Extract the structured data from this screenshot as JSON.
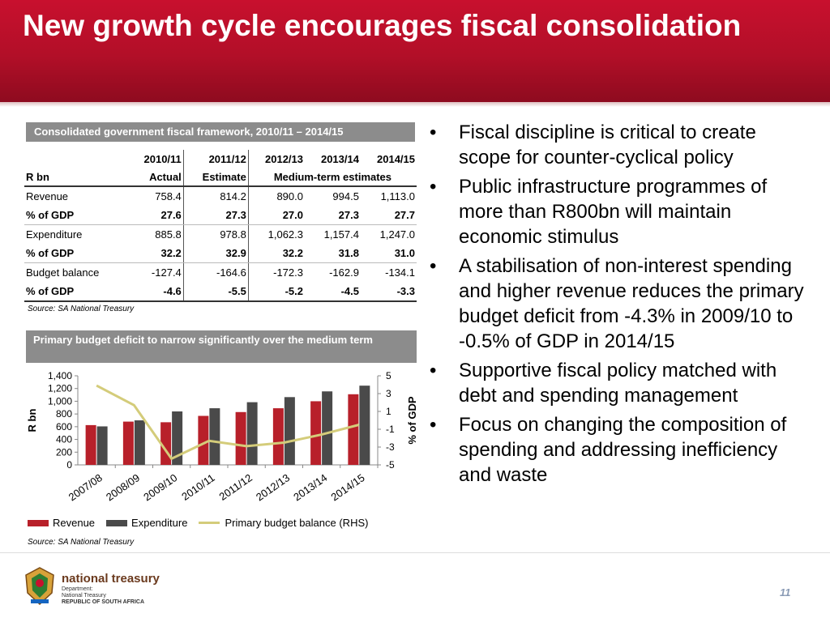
{
  "slide": {
    "title": "New growth cycle encourages fiscal consolidation",
    "page_number": "11"
  },
  "table": {
    "title": "Consolidated government fiscal framework, 2010/11 – 2014/15",
    "years": [
      "2010/11",
      "2011/12",
      "2012/13",
      "2013/14",
      "2014/15"
    ],
    "row_label": "R bn",
    "sub_headers": [
      "Actual",
      "Estimate",
      "Medium-term estimates"
    ],
    "rows": [
      {
        "label": "Revenue",
        "values": [
          "758.4",
          "814.2",
          "890.0",
          "994.5",
          "1,113.0"
        ],
        "bold": false
      },
      {
        "label": "% of GDP",
        "values": [
          "27.6",
          "27.3",
          "27.0",
          "27.3",
          "27.7"
        ],
        "bold": true
      },
      {
        "label": "Expenditure",
        "values": [
          "885.8",
          "978.8",
          "1,062.3",
          "1,157.4",
          "1,247.0"
        ],
        "bold": false
      },
      {
        "label": "% of GDP",
        "values": [
          "32.2",
          "32.9",
          "32.2",
          "31.8",
          "31.0"
        ],
        "bold": true
      },
      {
        "label": "Budget balance",
        "values": [
          "-127.4",
          "-164.6",
          "-172.3",
          "-162.9",
          "-134.1"
        ],
        "bold": false
      },
      {
        "label": "% of GDP",
        "values": [
          "-4.6",
          "-5.5",
          "-5.2",
          "-4.5",
          "-3.3"
        ],
        "bold": true
      }
    ],
    "source": "Source: SA National Treasury"
  },
  "chart_title": "Primary budget deficit to narrow significantly over the medium term",
  "chart_source": "Source: SA National Treasury",
  "chart_data": {
    "type": "bar",
    "categories": [
      "2007/08",
      "2008/09",
      "2009/10",
      "2010/11",
      "2011/12",
      "2012/13",
      "2013/14",
      "2014/15"
    ],
    "series": [
      {
        "name": "Revenue",
        "type": "bar",
        "axis": "left",
        "color": "#b8202a",
        "values": [
          625,
          680,
          670,
          770,
          830,
          890,
          1000,
          1110
        ]
      },
      {
        "name": "Expenditure",
        "type": "bar",
        "axis": "left",
        "color": "#4a4a4a",
        "values": [
          605,
          700,
          840,
          890,
          985,
          1065,
          1155,
          1245
        ]
      },
      {
        "name": "Primary budget balance (RHS)",
        "type": "line",
        "axis": "right",
        "color": "#d4cc7a",
        "values": [
          3.9,
          1.7,
          -4.3,
          -2.3,
          -2.9,
          -2.5,
          -1.6,
          -0.5
        ]
      }
    ],
    "ylabel": "R bn",
    "y2label": "% of GDP",
    "ylim": [
      0,
      1400
    ],
    "y2lim": [
      -5,
      5
    ],
    "yticks": [
      "0",
      "200",
      "400",
      "600",
      "800",
      "1,000",
      "1,200",
      "1,400"
    ],
    "y2ticks": [
      "-5",
      "-3",
      "-1",
      "1",
      "3",
      "5"
    ],
    "legend": "bottom",
    "grid": false
  },
  "bullets": [
    "Fiscal discipline is critical to create scope for counter-cyclical policy",
    "Public infrastructure programmes of more than R800bn will maintain economic stimulus",
    "A stabilisation of non-interest spending and higher revenue reduces the primary budget deficit from -4.3% in 2009/10 to -0.5% of GDP in 2014/15",
    "Supportive fiscal policy matched with debt and spending management",
    "Focus on changing the composition of spending and addressing inefficiency and waste"
  ],
  "bullet_glyph": "•",
  "footer": {
    "brand": "national treasury",
    "dept_lines": [
      "Department:",
      "National Treasury",
      "REPUBLIC OF SOUTH AFRICA"
    ],
    "logo_icon": "coat-of-arms-icon"
  },
  "colors": {
    "header": "#c8102e",
    "panel": "#8c8c8c",
    "revenue": "#b8202a",
    "expenditure": "#4a4a4a",
    "balance": "#d4cc7a"
  }
}
